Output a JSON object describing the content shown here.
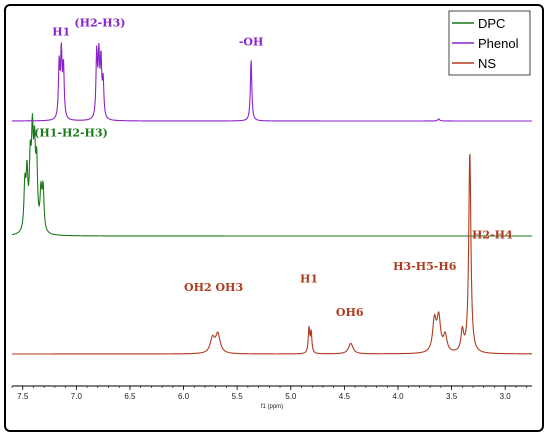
{
  "chart_data": {
    "type": "line",
    "title": "",
    "xlabel": "f1 (ppm)",
    "ylabel": "",
    "xlim": [
      7.6,
      2.75
    ],
    "x_reversed": true,
    "grid": false,
    "legend_position": "top-right",
    "x_ticks": [
      "7.5",
      "7.0",
      "6.5",
      "6.0",
      "5.5",
      "5.0",
      "4.5",
      "4.0",
      "3.5",
      "3.0"
    ],
    "series": [
      {
        "name": "DPC",
        "color": "#1a7a1a",
        "peaks": [
          {
            "ppm": 7.48,
            "height": 0.48,
            "width": 0.01
          },
          {
            "ppm": 7.46,
            "height": 0.58,
            "width": 0.01
          },
          {
            "ppm": 7.43,
            "height": 0.68,
            "width": 0.01
          },
          {
            "ppm": 7.41,
            "height": 0.92,
            "width": 0.01
          },
          {
            "ppm": 7.39,
            "height": 0.78,
            "width": 0.01
          },
          {
            "ppm": 7.37,
            "height": 0.66,
            "width": 0.01
          },
          {
            "ppm": 7.33,
            "height": 0.4,
            "width": 0.01
          },
          {
            "ppm": 7.31,
            "height": 0.45,
            "width": 0.01
          }
        ],
        "labels": [
          {
            "text": "(H1-H2-H3)",
            "ppm": 7.05,
            "height": 1.05
          }
        ]
      },
      {
        "name": "Phenol",
        "color": "#8a22c9",
        "peaks": [
          {
            "ppm": 7.16,
            "height": 0.78,
            "width": 0.008
          },
          {
            "ppm": 7.14,
            "height": 0.92,
            "width": 0.008
          },
          {
            "ppm": 7.12,
            "height": 0.74,
            "width": 0.008
          },
          {
            "ppm": 6.81,
            "height": 0.92,
            "width": 0.008
          },
          {
            "ppm": 6.79,
            "height": 0.86,
            "width": 0.008
          },
          {
            "ppm": 6.77,
            "height": 0.8,
            "width": 0.008
          },
          {
            "ppm": 6.75,
            "height": 0.52,
            "width": 0.008
          },
          {
            "ppm": 5.37,
            "height": 0.88,
            "width": 0.008
          },
          {
            "ppm": 3.62,
            "height": 0.03,
            "width": 0.01
          }
        ],
        "labels": [
          {
            "text": "H1",
            "ppm": 7.14,
            "height": 1.22
          },
          {
            "text": "(H2-H3)",
            "ppm": 6.78,
            "height": 1.35
          },
          {
            "text": "-OH",
            "ppm": 5.37,
            "height": 1.08
          }
        ]
      },
      {
        "name": "NS",
        "color": "#b03a1e",
        "peaks": [
          {
            "ppm": 5.73,
            "height": 0.07,
            "width": 0.025
          },
          {
            "ppm": 5.68,
            "height": 0.09,
            "width": 0.025
          },
          {
            "ppm": 4.83,
            "height": 0.12,
            "width": 0.008
          },
          {
            "ppm": 4.81,
            "height": 0.1,
            "width": 0.008
          },
          {
            "ppm": 4.44,
            "height": 0.05,
            "width": 0.025
          },
          {
            "ppm": 3.66,
            "height": 0.15,
            "width": 0.02
          },
          {
            "ppm": 3.62,
            "height": 0.16,
            "width": 0.02
          },
          {
            "ppm": 3.56,
            "height": 0.08,
            "width": 0.02
          },
          {
            "ppm": 3.4,
            "height": 0.1,
            "width": 0.015
          },
          {
            "ppm": 3.33,
            "height": 0.96,
            "width": 0.012
          }
        ],
        "labels": [
          {
            "text": "OH2  OH3",
            "ppm": 5.72,
            "height": 0.3
          },
          {
            "text": "H1",
            "ppm": 4.83,
            "height": 0.34
          },
          {
            "text": "OH6",
            "ppm": 4.45,
            "height": 0.18
          },
          {
            "text": "H3-H5-H6",
            "ppm": 3.75,
            "height": 0.4
          },
          {
            "text": "H2-H4",
            "ppm": 3.12,
            "height": 0.55
          }
        ]
      }
    ]
  }
}
